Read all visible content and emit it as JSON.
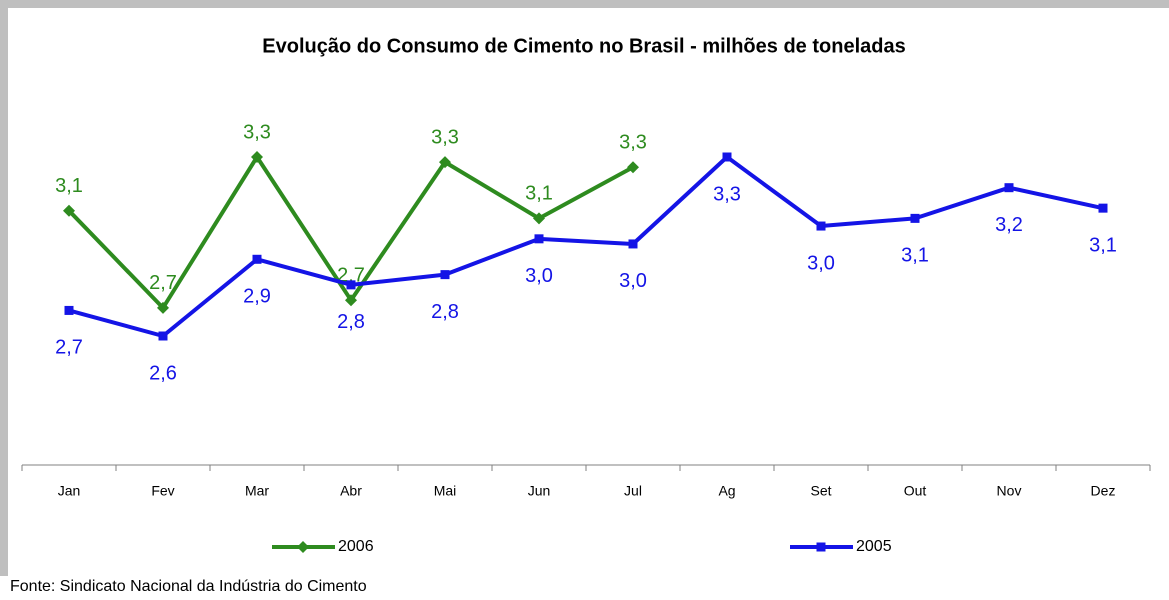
{
  "chart_data": {
    "type": "line",
    "title": "Evolução do Consumo de Cimento no Brasil - milhões de toneladas",
    "categories": [
      "Jan",
      "Fev",
      "Mar",
      "Abr",
      "Mai",
      "Jun",
      "Jul",
      "Ag",
      "Set",
      "Out",
      "Nov",
      "Dez"
    ],
    "series": [
      {
        "name": "2006",
        "color": "#2e8b1f",
        "marker": "diamond",
        "values": [
          3.09,
          2.71,
          3.3,
          2.74,
          3.28,
          3.06,
          3.26,
          null,
          null,
          null,
          null,
          null
        ],
        "value_labels": [
          "3,1",
          "2,7",
          "3,3",
          "2,7",
          "3,3",
          "3,1",
          "3,3",
          null,
          null,
          null,
          null,
          null
        ]
      },
      {
        "name": "2005",
        "color": "#1414e6",
        "marker": "square",
        "values": [
          2.7,
          2.6,
          2.9,
          2.8,
          2.84,
          2.98,
          2.96,
          3.3,
          3.03,
          3.06,
          3.18,
          3.1
        ],
        "value_labels": [
          "2,7",
          "2,6",
          "2,9",
          "2,8",
          "2,8",
          "3,0",
          "3,0",
          "3,3",
          "3,0",
          "3,1",
          "3,2",
          "3,1"
        ]
      }
    ],
    "source": "Fonte: Sindicato Nacional da Indústria do Cimento"
  }
}
